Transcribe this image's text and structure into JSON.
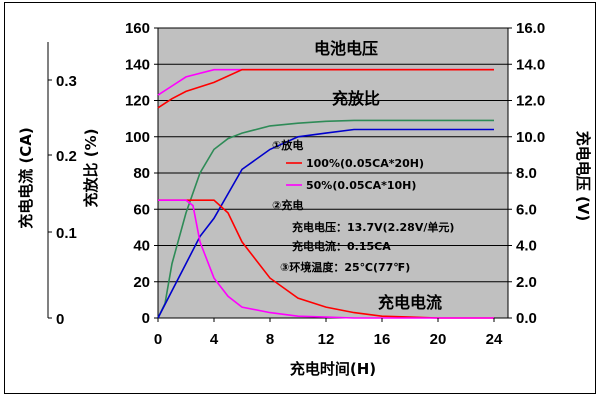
{
  "chart_data": {
    "type": "line",
    "xlabel": "充电时间(H)",
    "x_ticks": [
      "0",
      "4",
      "8",
      "12",
      "16",
      "20",
      "24"
    ],
    "xlim": [
      0,
      25
    ],
    "left_axis_1": {
      "label": "充电电流 (CA)",
      "ticks": [
        "0.3",
        "0.2",
        "0.1",
        "0"
      ]
    },
    "left_axis_2": {
      "label": "充放比 (%)",
      "ticks": [
        "160",
        "140",
        "120",
        "100",
        "80",
        "60",
        "40",
        "20",
        "0"
      ],
      "ylim": [
        0,
        160
      ]
    },
    "right_axis": {
      "label": "充电电压 (V)",
      "ticks": [
        "16.0",
        "14.0",
        "12.0",
        "10.0",
        "8.0",
        "6.0",
        "4.0",
        "2.0",
        "0.0"
      ],
      "ylim": [
        0,
        16
      ]
    },
    "grid": true,
    "series": [
      {
        "name": "电池电压",
        "color": "#ff00ff",
        "axis": "right",
        "points": [
          [
            0,
            12.3
          ],
          [
            1,
            12.8
          ],
          [
            2,
            13.3
          ],
          [
            4,
            13.7
          ],
          [
            6,
            13.7
          ],
          [
            8,
            13.7
          ],
          [
            12,
            13.7
          ],
          [
            16,
            13.7
          ],
          [
            20,
            13.7
          ],
          [
            24,
            13.7
          ]
        ]
      },
      {
        "color": "#ff0000",
        "axis": "right",
        "points": [
          [
            0,
            11.6
          ],
          [
            1,
            12.1
          ],
          [
            2,
            12.5
          ],
          [
            4,
            13.0
          ],
          [
            6,
            13.7
          ],
          [
            8,
            13.7
          ],
          [
            12,
            13.7
          ],
          [
            16,
            13.7
          ],
          [
            20,
            13.7
          ],
          [
            24,
            13.7
          ]
        ]
      },
      {
        "name": "充放比",
        "color": "#2e8b57",
        "axis": "left",
        "points": [
          [
            0,
            0
          ],
          [
            0.5,
            8
          ],
          [
            1,
            30
          ],
          [
            2,
            58
          ],
          [
            3,
            80
          ],
          [
            4,
            93
          ],
          [
            5,
            99
          ],
          [
            6,
            102
          ],
          [
            8,
            106
          ],
          [
            10,
            107.5
          ],
          [
            12,
            108.5
          ],
          [
            14,
            109
          ],
          [
            16,
            109
          ],
          [
            20,
            109
          ],
          [
            24,
            109
          ]
        ]
      },
      {
        "color": "#0000cc",
        "axis": "left",
        "points": [
          [
            0,
            0
          ],
          [
            1,
            15
          ],
          [
            2,
            30
          ],
          [
            3,
            45
          ],
          [
            4,
            55
          ],
          [
            6,
            82
          ],
          [
            8,
            93
          ],
          [
            10,
            100
          ],
          [
            12,
            102
          ],
          [
            14,
            104
          ],
          [
            16,
            104
          ],
          [
            20,
            104
          ],
          [
            24,
            104
          ]
        ]
      },
      {
        "name": "充电电流",
        "color": "#ff0000",
        "axis": "left",
        "points": [
          [
            0,
            65
          ],
          [
            2,
            65
          ],
          [
            3,
            65
          ],
          [
            4,
            65
          ],
          [
            5,
            58
          ],
          [
            6,
            42
          ],
          [
            8,
            22
          ],
          [
            10,
            11
          ],
          [
            12,
            6
          ],
          [
            14,
            3
          ],
          [
            16,
            1
          ],
          [
            18,
            0.5
          ],
          [
            20,
            0
          ],
          [
            24,
            0
          ]
        ]
      },
      {
        "color": "#ff00ff",
        "axis": "left",
        "points": [
          [
            0,
            65
          ],
          [
            2,
            65
          ],
          [
            2.5,
            62
          ],
          [
            3,
            42
          ],
          [
            4,
            22
          ],
          [
            5,
            12
          ],
          [
            6,
            6
          ],
          [
            8,
            3
          ],
          [
            10,
            1
          ],
          [
            12,
            0.5
          ],
          [
            14,
            0
          ],
          [
            24,
            0
          ]
        ]
      }
    ],
    "annotations": {
      "battery_voltage": "电池电压",
      "charge_ratio": "充放比",
      "charge_current": "充电电流",
      "discharge": "①放电",
      "discharge_100": "100%(0.05CA*20H)",
      "discharge_50": "50%(0.05CA*10H)",
      "charge": "②充电",
      "charge_voltage": "充电电压：13.7V(2.28V/单元)",
      "charge_current_val": "充电电流：0.15CA",
      "ambient": "③环境温度：25℃(77℉)"
    }
  }
}
